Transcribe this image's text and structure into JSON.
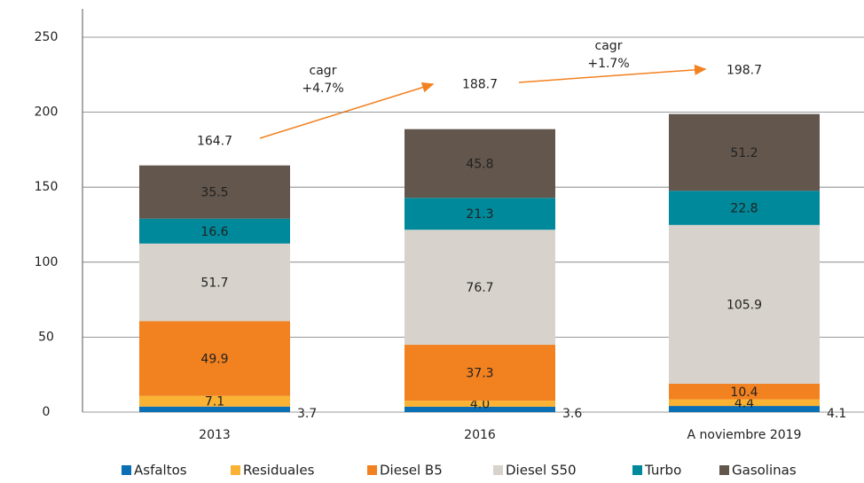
{
  "chart_data": {
    "type": "stacked_bar",
    "categories": [
      "2013",
      "2016",
      "A noviembre 2019"
    ],
    "series": [
      {
        "name": "Asfaltos",
        "color": "#0a6fb5",
        "values": [
          3.7,
          3.6,
          4.1
        ]
      },
      {
        "name": "Residuales",
        "color": "#f9b233",
        "values": [
          7.1,
          4.0,
          4.4
        ],
        "value_labels": [
          "7.1",
          "4.0",
          "4.4"
        ]
      },
      {
        "name": "Diesel B5",
        "color": "#f28120",
        "values": [
          49.9,
          37.3,
          10.4
        ]
      },
      {
        "name": "Diesel S50",
        "color": "#d7d3cc",
        "values": [
          51.7,
          76.7,
          105.9
        ]
      },
      {
        "name": "Turbo",
        "color": "#00899a",
        "values": [
          16.6,
          21.3,
          22.8
        ]
      },
      {
        "name": "Gasolinas",
        "color": "#62564d",
        "values": [
          35.5,
          45.8,
          51.2
        ]
      }
    ],
    "totals": [
      164.7,
      188.7,
      198.7
    ],
    "annotations": [
      [
        "cagr",
        "+4.7%"
      ],
      [
        "cagr",
        "+1.7%"
      ]
    ],
    "ylim": [
      0,
      250
    ],
    "yticks": [
      0,
      50,
      100,
      150,
      200,
      250
    ],
    "grid": true
  }
}
